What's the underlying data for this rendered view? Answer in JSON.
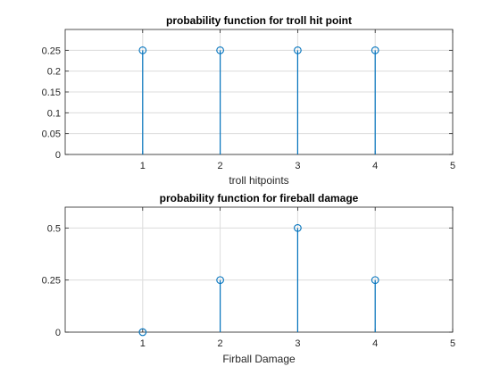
{
  "colors": {
    "stem": "#0072BD",
    "grid": "#DCDCDC",
    "axis": "#262626",
    "background": "#FFFFFF"
  },
  "chart_data": [
    {
      "type": "stem",
      "title": "probability function for troll hit point",
      "xlabel": "troll hitpoints",
      "ylabel": "",
      "xlim": [
        0,
        5
      ],
      "ylim": [
        0,
        0.3
      ],
      "xticks": [
        1,
        2,
        3,
        4,
        5
      ],
      "xtick_labels": [
        "1",
        "2",
        "3",
        "4",
        "5"
      ],
      "yticks": [
        0,
        0.05,
        0.1,
        0.15,
        0.2,
        0.25
      ],
      "ytick_labels": [
        "0",
        "0.05",
        "0.1",
        "0.15",
        "0.2",
        "0.25"
      ],
      "grid": true,
      "x": [
        1,
        2,
        3,
        4
      ],
      "values": [
        0.25,
        0.25,
        0.25,
        0.25
      ]
    },
    {
      "type": "stem",
      "title": "probability function for fireball damage",
      "xlabel": "Firball Damage",
      "ylabel": "",
      "xlim": [
        0,
        5
      ],
      "ylim": [
        0,
        0.6
      ],
      "xticks": [
        1,
        2,
        3,
        4,
        5
      ],
      "xtick_labels": [
        "1",
        "2",
        "3",
        "4",
        "5"
      ],
      "yticks": [
        0,
        0.25,
        0.5
      ],
      "ytick_labels": [
        "0",
        "0.25",
        "0.5"
      ],
      "grid": true,
      "x": [
        1,
        2,
        3,
        4
      ],
      "values": [
        0,
        0.25,
        0.5,
        0.25
      ]
    }
  ]
}
